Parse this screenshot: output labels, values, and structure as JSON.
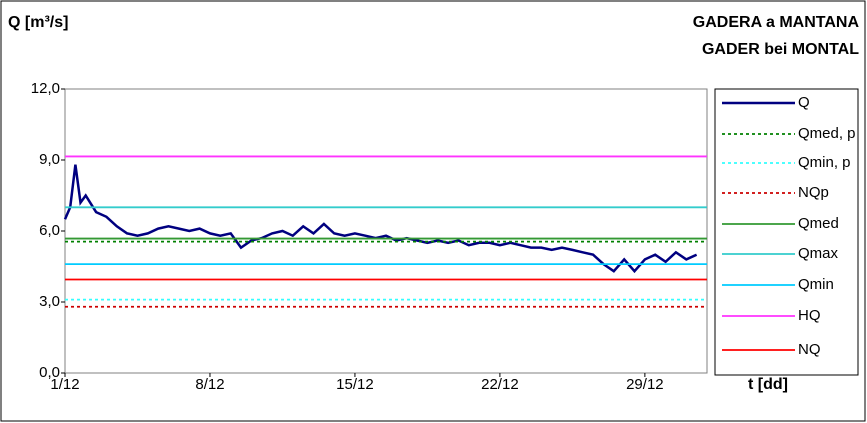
{
  "chart_data": {
    "type": "line",
    "title": "GADERA a MANTANA",
    "subtitle": "GADER bei MONTAL",
    "y_label": "Q [m³/s]",
    "x_label": "t [dd]",
    "ylim": [
      0,
      12
    ],
    "yticks": [
      {
        "value": 0,
        "label": "0,0"
      },
      {
        "value": 3,
        "label": "3,0"
      },
      {
        "value": 6,
        "label": "6,0"
      },
      {
        "value": 9,
        "label": "9,0"
      },
      {
        "value": 12,
        "label": "12,0"
      }
    ],
    "xlim": [
      1,
      32
    ],
    "xticks": [
      {
        "value": 1,
        "label": "1/12"
      },
      {
        "value": 8,
        "label": "8/12"
      },
      {
        "value": 15,
        "label": "15/12"
      },
      {
        "value": 22,
        "label": "22/12"
      },
      {
        "value": 29,
        "label": "29/12"
      }
    ],
    "x": [
      1,
      1.25,
      1.5,
      1.75,
      2,
      2.5,
      3,
      3.5,
      4,
      4.5,
      5,
      5.5,
      6,
      6.5,
      7,
      7.5,
      8,
      8.5,
      9,
      9.5,
      10,
      10.5,
      11,
      11.5,
      12,
      12.5,
      13,
      13.5,
      14,
      14.5,
      15,
      15.5,
      16,
      16.5,
      17,
      17.5,
      18,
      18.5,
      19,
      19.5,
      20,
      20.5,
      21,
      21.5,
      22,
      22.5,
      23,
      23.5,
      24,
      24.5,
      25,
      25.5,
      26,
      26.5,
      27,
      27.5,
      28,
      28.5,
      29,
      29.5,
      30,
      30.5,
      31,
      31.5
    ],
    "series": [
      {
        "name": "Q",
        "color": "#000080",
        "values": [
          6.5,
          7.0,
          8.8,
          7.2,
          7.5,
          6.8,
          6.6,
          6.2,
          5.9,
          5.8,
          5.9,
          6.1,
          6.2,
          6.1,
          6.0,
          6.1,
          5.9,
          5.8,
          5.9,
          5.3,
          5.6,
          5.7,
          5.9,
          6.0,
          5.8,
          6.2,
          5.9,
          6.3,
          5.9,
          5.8,
          5.9,
          5.8,
          5.7,
          5.8,
          5.6,
          5.7,
          5.6,
          5.5,
          5.6,
          5.5,
          5.6,
          5.4,
          5.5,
          5.5,
          5.4,
          5.5,
          5.4,
          5.3,
          5.3,
          5.2,
          5.3,
          5.2,
          5.1,
          5.0,
          4.6,
          4.3,
          4.8,
          4.3,
          4.8,
          5.0,
          4.7,
          5.1,
          4.8,
          5.0
        ]
      },
      {
        "name": "Qmed, p",
        "color": "#008000",
        "dashed": true,
        "value": 5.55
      },
      {
        "name": "Qmin, p",
        "color": "#33ffff",
        "dashed": true,
        "value": 3.1
      },
      {
        "name": "NQp",
        "color": "#cc0000",
        "dashed": true,
        "value": 2.8
      },
      {
        "name": "Qmed",
        "color": "#339933",
        "value": 5.68
      },
      {
        "name": "Qmax",
        "color": "#33cccc",
        "value": 7.0
      },
      {
        "name": "Qmin",
        "color": "#00ccff",
        "value": 4.6
      },
      {
        "name": "HQ",
        "color": "#ff33ff",
        "value": 9.15
      },
      {
        "name": "NQ",
        "color": "#ff0000",
        "value": 3.95
      }
    ]
  }
}
